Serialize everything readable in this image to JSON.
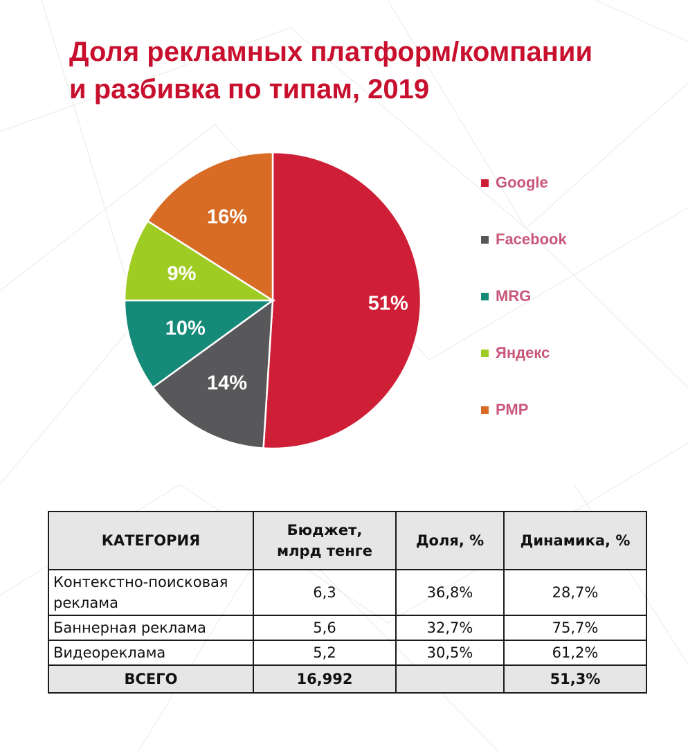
{
  "title": {
    "line1": "Доля рекламных платформ/компании",
    "line2": "и разбивка по типам, 2019"
  },
  "chart_data": {
    "type": "pie",
    "slices": [
      {
        "name": "Google",
        "value": 51,
        "label": "51%",
        "color": "#cf1f37"
      },
      {
        "name": "Facebook",
        "value": 14,
        "label": "14%",
        "color": "#58585a"
      },
      {
        "name": "MRG",
        "value": 10,
        "label": "10%",
        "color": "#168a78"
      },
      {
        "name": "Яндекс",
        "value": 9,
        "label": "9%",
        "color": "#9fcc22"
      },
      {
        "name": "РМР",
        "value": 16,
        "label": "16%",
        "color": "#d86c24"
      }
    ],
    "start_angle_deg": 0,
    "direction": "clockwise",
    "legend_position": "right"
  },
  "table": {
    "headers": {
      "category": "КАТЕГОРИЯ",
      "budget_line1": "Бюджет,",
      "budget_line2": "млрд тенге",
      "share": "Доля, %",
      "dynamics": "Динамика, %"
    },
    "rows": [
      {
        "category_line1": "Контекстно-поисковая",
        "category_line2": "реклама",
        "budget": "6,3",
        "share": "36,8%",
        "dynamics": "28,7%"
      },
      {
        "category_line1": "Баннерная реклама",
        "category_line2": "",
        "budget": "5,6",
        "share": "32,7%",
        "dynamics": "75,7%"
      },
      {
        "category_line1": "Видеореклама",
        "category_line2": "",
        "budget": "5,2",
        "share": "30,5%",
        "dynamics": "61,2%"
      }
    ],
    "total": {
      "label": "ВСЕГО",
      "budget": "16,992",
      "share": "",
      "dynamics": "51,3%"
    }
  }
}
